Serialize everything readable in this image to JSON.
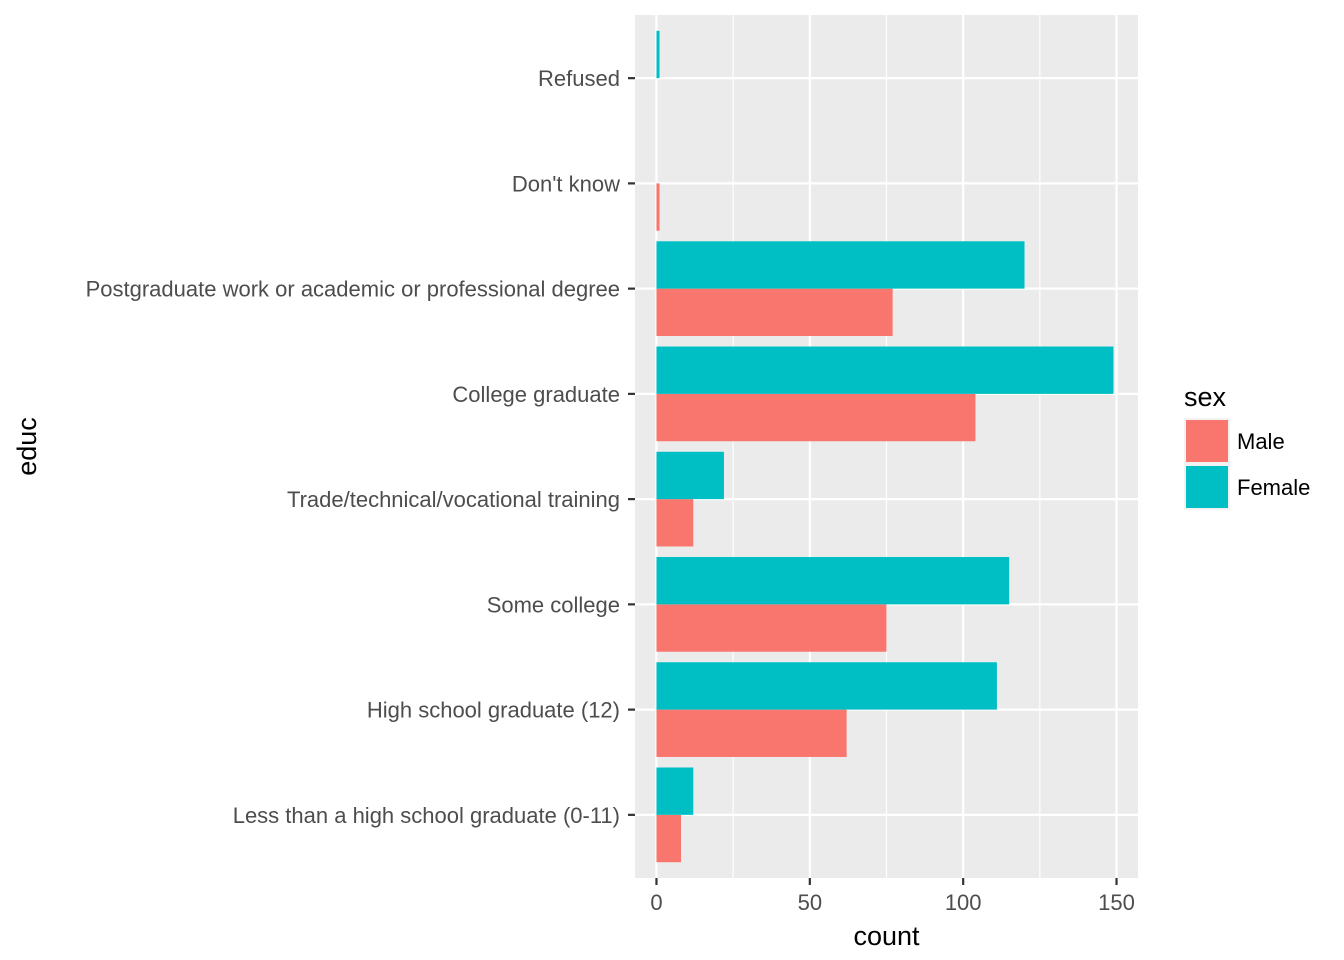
{
  "chart_data": {
    "type": "bar",
    "orientation": "horizontal",
    "position": "dodge",
    "xlabel": "count",
    "ylabel": "educ",
    "xlim": [
      -7,
      157
    ],
    "xticks": [
      0,
      50,
      100,
      150
    ],
    "categories": [
      "Less than a high school graduate (0-11)",
      "High school graduate (12)",
      "Some college",
      "Trade/technical/vocational training",
      "College graduate",
      "Postgraduate work or academic or professional degree",
      "Don't know",
      "Refused"
    ],
    "series": [
      {
        "name": "Male",
        "color": "#F8766D",
        "values": [
          8,
          62,
          75,
          12,
          104,
          77,
          1,
          0
        ]
      },
      {
        "name": "Female",
        "color": "#00BFC4",
        "values": [
          12,
          111,
          115,
          22,
          149,
          120,
          0,
          1
        ]
      }
    ],
    "legend": {
      "title": "sex",
      "position": "right"
    },
    "grid": true,
    "panel_background": "#EBEBEB"
  }
}
